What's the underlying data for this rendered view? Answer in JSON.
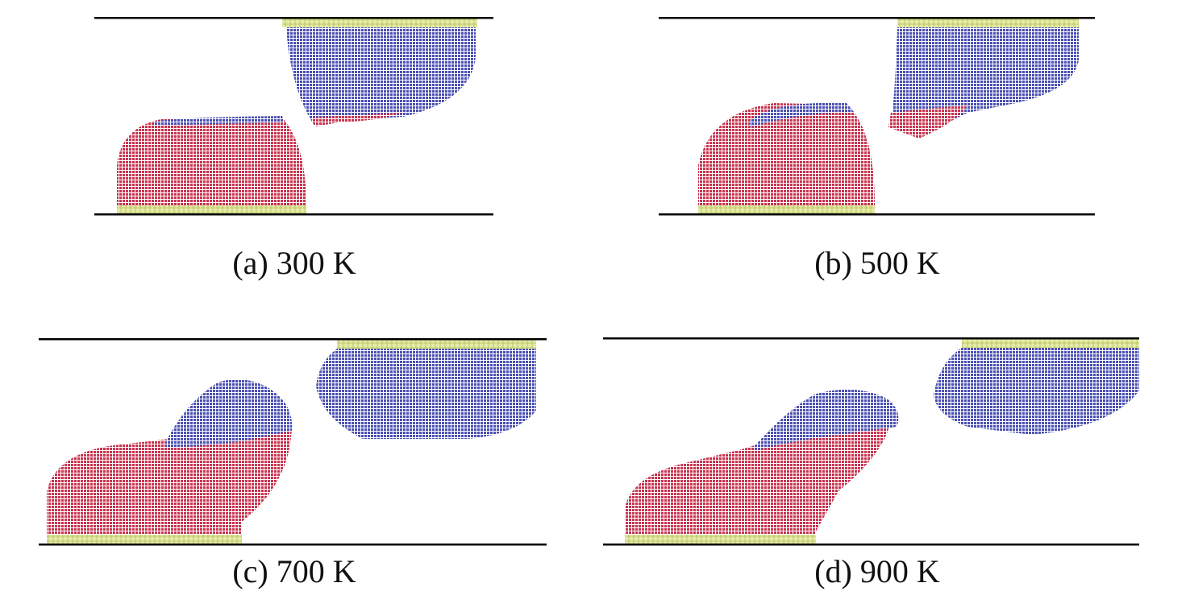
{
  "figure": {
    "panels": [
      {
        "label": "(a) 300 K",
        "temperature_K": 300
      },
      {
        "label": "(b) 500 K",
        "temperature_K": 500
      },
      {
        "label": "(c) 700 K",
        "temperature_K": 700
      },
      {
        "label": "(d) 900 K",
        "temperature_K": 900
      }
    ],
    "colors": {
      "red_atoms": "#c8334f",
      "blue_atoms": "#4a4fb2",
      "substrate": "#dfe79c",
      "wall": "#000000"
    }
  }
}
